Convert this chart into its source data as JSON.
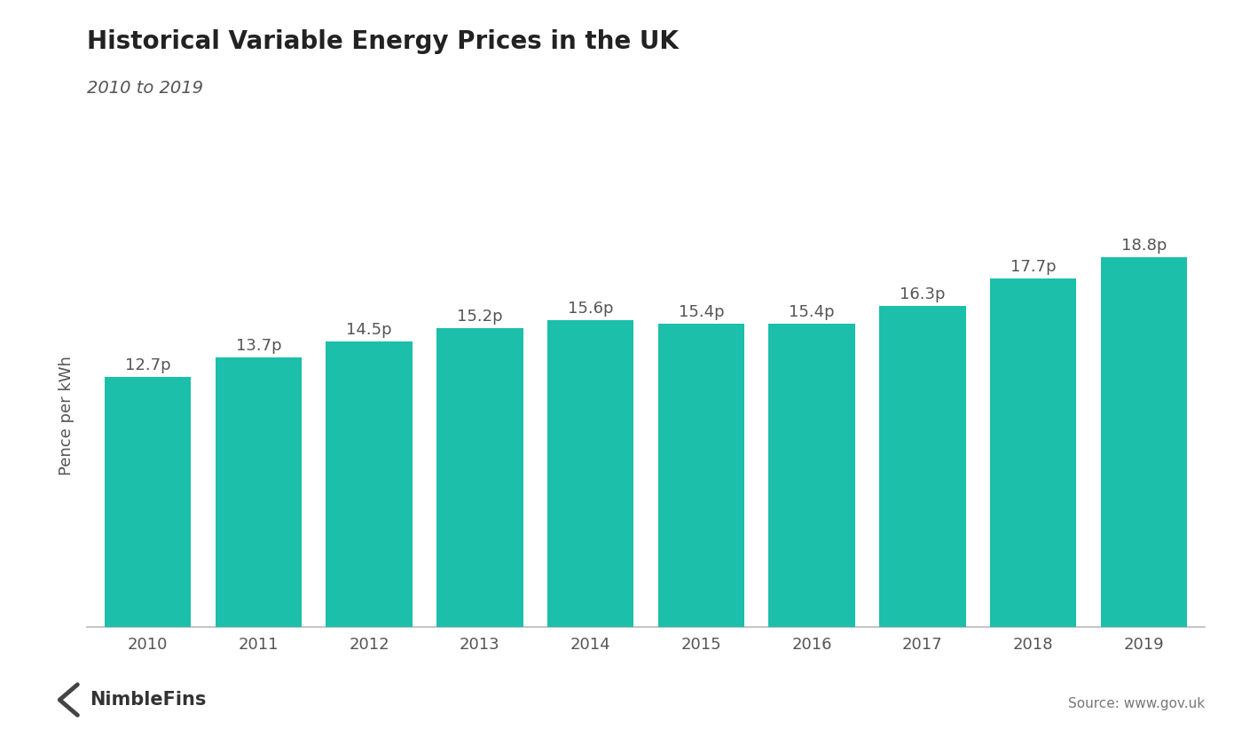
{
  "title": "Historical Variable Energy Prices in the UK",
  "subtitle": "2010 to 2019",
  "ylabel": "Pence per kWh",
  "years": [
    "2010",
    "2011",
    "2012",
    "2013",
    "2014",
    "2015",
    "2016",
    "2017",
    "2018",
    "2019"
  ],
  "values": [
    12.7,
    13.7,
    14.5,
    15.2,
    15.6,
    15.4,
    15.4,
    16.3,
    17.7,
    18.8
  ],
  "labels": [
    "12.7p",
    "13.7p",
    "14.5p",
    "15.2p",
    "15.6p",
    "15.4p",
    "15.4p",
    "16.3p",
    "17.7p",
    "18.8p"
  ],
  "bar_color": "#1BBFAA",
  "background_color": "#ffffff",
  "text_color": "#555555",
  "title_color": "#222222",
  "title_fontsize": 20,
  "subtitle_fontsize": 14,
  "label_fontsize": 13,
  "tick_fontsize": 13,
  "ylabel_fontsize": 13,
  "source_text": "Source: www.gov.uk",
  "nimblefins_text": "NimbleFins",
  "ylim_max": 21.5,
  "bar_width": 0.78
}
